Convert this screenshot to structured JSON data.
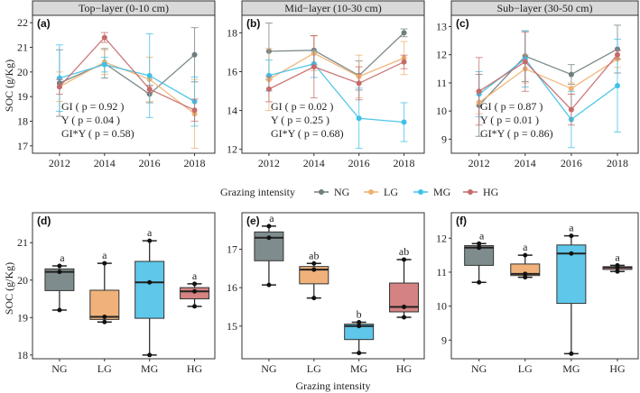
{
  "legend": {
    "title": "Grazing intensity",
    "entries": [
      "NG",
      "LG",
      "MG",
      "HG"
    ]
  },
  "colors": {
    "NG": "#6e7d7e",
    "LG": "#f0b070",
    "MG": "#3fc0e6",
    "HG": "#c66a6a"
  },
  "box_fills": {
    "NG": "#7f8c8d",
    "LG": "#f0b27a",
    "MG": "#5ec7ea",
    "HG": "#d48282"
  },
  "ylabel": "SOC (g/Kg)",
  "bottom_xlabel": "Grazing intensity",
  "chart_data": [
    {
      "type": "line",
      "tag": "(a)",
      "title": "Top−layer (0-10 cm)",
      "x": [
        2012,
        2014,
        2016,
        2018
      ],
      "ylim": [
        16.7,
        22.3
      ],
      "yticks": [
        17,
        18,
        19,
        20,
        21,
        22
      ],
      "xticks": [
        2012,
        2014,
        2016,
        2018
      ],
      "annotation": [
        "GI ( p = 0.92 )",
        "Y ( p = 0.04 )",
        "GI*Y ( p = 0.58)"
      ],
      "series": [
        {
          "name": "NG",
          "values": [
            19.55,
            20.35,
            19.1,
            20.7
          ],
          "err": [
            1.35,
            0.6,
            0.35,
            1.1
          ]
        },
        {
          "name": "LG",
          "values": [
            19.4,
            20.4,
            19.7,
            18.3
          ],
          "err": [
            0.6,
            0.5,
            0.9,
            1.4
          ]
        },
        {
          "name": "MG",
          "values": [
            19.75,
            20.3,
            19.85,
            18.8
          ],
          "err": [
            1.35,
            0.3,
            1.7,
            1.0
          ]
        },
        {
          "name": "HG",
          "values": [
            19.4,
            21.4,
            19.3,
            18.45
          ],
          "err": [
            0.3,
            0.2,
            0.15,
            0.45
          ]
        }
      ]
    },
    {
      "type": "line",
      "tag": "(b)",
      "title": "Mid−layer (10-30 cm)",
      "x": [
        2012,
        2014,
        2016,
        2018
      ],
      "ylim": [
        11.8,
        18.9
      ],
      "yticks": [
        12,
        14,
        16,
        18
      ],
      "xticks": [
        2012,
        2014,
        2016,
        2018
      ],
      "annotation": [
        "GI ( p = 0.02 )",
        "Y ( p = 0.25 )",
        "GI*Y ( p = 0.68)"
      ],
      "series": [
        {
          "name": "NG",
          "values": [
            17.05,
            17.1,
            15.8,
            18.0
          ],
          "err": [
            1.45,
            0.75,
            0.75,
            0.2
          ]
        },
        {
          "name": "LG",
          "values": [
            15.6,
            16.95,
            15.75,
            16.7
          ],
          "err": [
            1.6,
            0.9,
            1.1,
            0.85
          ]
        },
        {
          "name": "MG",
          "values": [
            15.8,
            16.4,
            13.6,
            13.4
          ],
          "err": [
            0.8,
            0.7,
            1.55,
            1.0
          ]
        },
        {
          "name": "HG",
          "values": [
            15.1,
            16.25,
            15.4,
            16.5
          ],
          "err": [
            0.65,
            1.6,
            0.85,
            0.35
          ]
        }
      ]
    },
    {
      "type": "line",
      "tag": "(c)",
      "title": "Sub−layer (30-50 cm)",
      "x": [
        2012,
        2014,
        2016,
        2018
      ],
      "ylim": [
        8.5,
        13.4
      ],
      "yticks": [
        9,
        10,
        11,
        12,
        13
      ],
      "xticks": [
        2012,
        2014,
        2016,
        2018
      ],
      "annotation": [
        "GI ( p = 0.87 )",
        "Y ( p = 0.01 )",
        "GI*Y ( p = 0.86)"
      ],
      "series": [
        {
          "name": "NG",
          "values": [
            10.2,
            11.95,
            11.3,
            12.2
          ],
          "err": [
            1.1,
            0.9,
            0.35,
            0.85
          ]
        },
        {
          "name": "LG",
          "values": [
            10.3,
            11.5,
            10.8,
            11.85
          ],
          "err": [
            0.4,
            0.5,
            0.2,
            0.3
          ]
        },
        {
          "name": "MG",
          "values": [
            10.6,
            11.85,
            9.7,
            10.9
          ],
          "err": [
            0.8,
            1.0,
            1.0,
            1.65
          ]
        },
        {
          "name": "HG",
          "values": [
            10.7,
            11.75,
            10.05,
            12.0
          ],
          "err": [
            1.2,
            1.05,
            0.55,
            0.15
          ]
        }
      ]
    },
    {
      "type": "box",
      "tag": "(d)",
      "categories": [
        "NG",
        "LG",
        "MG",
        "HG"
      ],
      "ylim": [
        17.9,
        21.8
      ],
      "yticks": [
        18,
        19,
        20,
        21
      ],
      "boxes": [
        {
          "min": 19.2,
          "q1": 19.72,
          "median": 20.22,
          "q3": 20.3,
          "max": 20.38,
          "points": [
            19.2,
            20.22,
            20.38
          ],
          "letter": "a"
        },
        {
          "min": 18.88,
          "q1": 18.95,
          "median": 19.02,
          "q3": 19.73,
          "max": 20.45,
          "points": [
            18.88,
            19.02,
            20.45
          ],
          "letter": "a"
        },
        {
          "min": 18.0,
          "q1": 18.98,
          "median": 19.94,
          "q3": 20.5,
          "max": 21.05,
          "points": [
            18.0,
            19.94,
            21.05
          ],
          "letter": "a"
        },
        {
          "min": 19.3,
          "q1": 19.5,
          "median": 19.7,
          "q3": 19.8,
          "max": 19.9,
          "points": [
            19.3,
            19.7,
            19.9
          ],
          "letter": "a"
        }
      ]
    },
    {
      "type": "box",
      "tag": "(e)",
      "categories": [
        "NG",
        "LG",
        "MG",
        "HG"
      ],
      "ylim": [
        14.15,
        17.95
      ],
      "yticks": [
        15,
        16,
        17
      ],
      "boxes": [
        {
          "min": 16.07,
          "q1": 16.7,
          "median": 17.3,
          "q3": 17.45,
          "max": 17.6,
          "points": [
            16.07,
            17.3,
            17.6
          ],
          "letter": "a"
        },
        {
          "min": 15.73,
          "q1": 16.1,
          "median": 16.47,
          "q3": 16.55,
          "max": 16.63,
          "points": [
            15.73,
            16.47,
            16.63
          ],
          "letter": "ab"
        },
        {
          "min": 14.3,
          "q1": 14.65,
          "median": 15.0,
          "q3": 15.05,
          "max": 15.1,
          "points": [
            14.3,
            15.0,
            15.1
          ],
          "letter": "b"
        },
        {
          "min": 15.23,
          "q1": 15.37,
          "median": 15.5,
          "q3": 16.12,
          "max": 16.73,
          "points": [
            15.23,
            15.5,
            16.73
          ],
          "letter": "ab"
        }
      ]
    },
    {
      "type": "box",
      "tag": "(f)",
      "categories": [
        "NG",
        "LG",
        "MG",
        "HG"
      ],
      "ylim": [
        8.45,
        12.75
      ],
      "yticks": [
        9,
        10,
        11,
        12
      ],
      "boxes": [
        {
          "min": 10.7,
          "q1": 11.2,
          "median": 11.72,
          "q3": 11.78,
          "max": 11.84,
          "points": [
            10.7,
            11.72,
            11.84
          ],
          "letter": "a"
        },
        {
          "min": 10.85,
          "q1": 10.9,
          "median": 10.95,
          "q3": 11.24,
          "max": 11.5,
          "points": [
            10.85,
            10.95,
            11.5
          ],
          "letter": "a"
        },
        {
          "min": 8.6,
          "q1": 10.08,
          "median": 11.55,
          "q3": 11.8,
          "max": 12.07,
          "points": [
            8.6,
            11.55,
            12.07
          ],
          "letter": "a"
        },
        {
          "min": 11.02,
          "q1": 11.08,
          "median": 11.14,
          "q3": 11.16,
          "max": 11.2,
          "points": [
            11.02,
            11.14,
            11.2
          ],
          "letter": "a"
        }
      ]
    }
  ]
}
